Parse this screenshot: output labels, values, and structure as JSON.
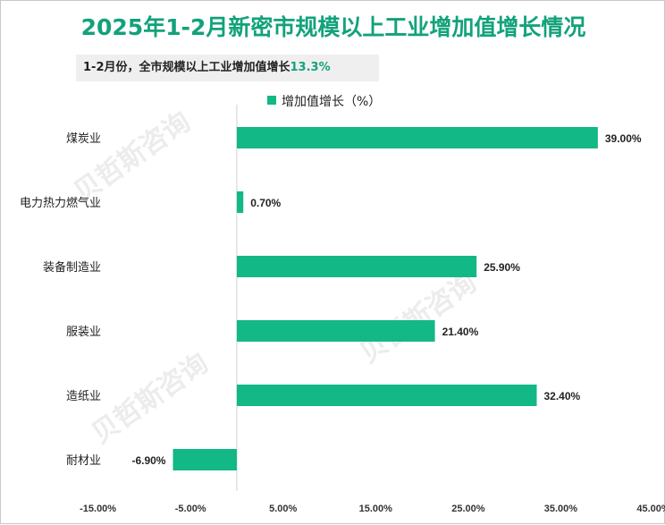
{
  "chart_data": {
    "type": "bar",
    "orientation": "horizontal",
    "title": "2025年1-2月新密市规模以上工业增加值增长情况",
    "subtitle": {
      "prefix": "1-2月份，全市规模以上工业增加值增长",
      "value": "13.3%"
    },
    "legend": "增加值增长（%）",
    "categories": [
      "煤炭业",
      "电力热力燃气业",
      "装备制造业",
      "服装业",
      "造纸业",
      "耐材业"
    ],
    "values": [
      39.0,
      0.7,
      25.9,
      21.4,
      32.4,
      -6.9
    ],
    "value_labels": [
      "39.00%",
      "0.70%",
      "25.90%",
      "21.40%",
      "32.40%",
      "-6.90%"
    ],
    "x_ticks": [
      -15,
      -5,
      5,
      15,
      25,
      35,
      45
    ],
    "x_tick_labels": [
      "-15.00%",
      "-5.00%",
      "5.00%",
      "15.00%",
      "25.00%",
      "35.00%",
      "45.00%"
    ],
    "xlim": [
      -19.5,
      45
    ],
    "bar_color": "#12b886"
  },
  "watermark": "贝哲斯咨询"
}
